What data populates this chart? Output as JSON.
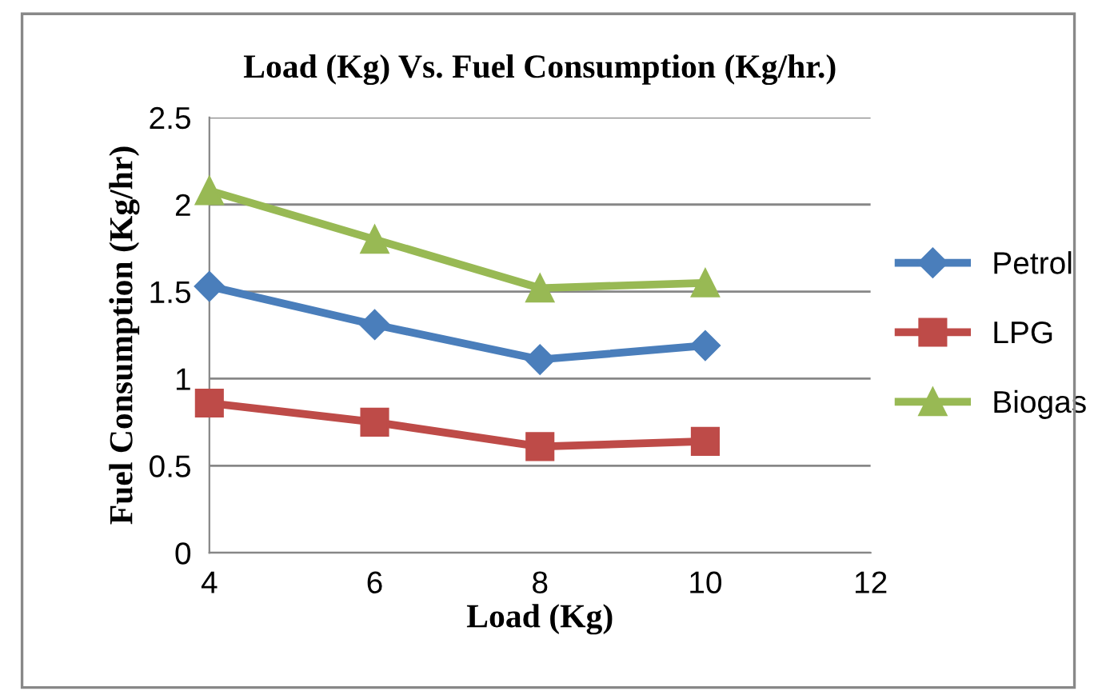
{
  "chart_data": {
    "type": "line",
    "title": "Load (Kg) Vs. Fuel Consumption (Kg/hr.)",
    "xlabel": "Load (Kg)",
    "ylabel": "Fuel Consumption (Kg/hr)",
    "x": [
      4,
      6,
      8,
      10
    ],
    "series": [
      {
        "name": "Petrol",
        "color": "#4a7ebb",
        "marker": "diamond",
        "values": [
          1.53,
          1.31,
          1.11,
          1.19
        ]
      },
      {
        "name": "LPG",
        "color": "#be4b48",
        "marker": "square",
        "values": [
          0.86,
          0.75,
          0.61,
          0.64
        ]
      },
      {
        "name": "Biogas",
        "color": "#98b954",
        "marker": "triangle",
        "values": [
          2.08,
          1.8,
          1.52,
          1.55
        ]
      }
    ],
    "xlim": [
      4,
      12
    ],
    "xticks": [
      4,
      6,
      8,
      10,
      12
    ],
    "ylim": [
      0,
      2.5
    ],
    "yticks": [
      0,
      0.5,
      1,
      1.5,
      2,
      2.5
    ],
    "grid": "y",
    "legend": "right"
  }
}
